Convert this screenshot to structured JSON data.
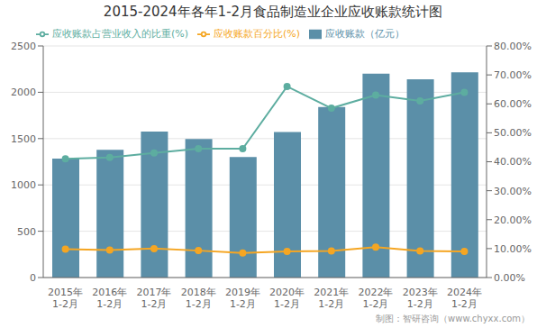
{
  "chart_data": {
    "type": "bar",
    "title": "2015-2024年各年1-2月食品制造业企业应收账款统计图",
    "categories": [
      "2015年\n1-2月",
      "2016年\n1-2月",
      "2017年\n1-2月",
      "2018年\n1-2月",
      "2019年\n1-2月",
      "2020年\n1-2月",
      "2021年\n1-2月",
      "2022年\n1-2月",
      "2023年\n1-2月",
      "2024年\n1-2月"
    ],
    "series": [
      {
        "name": "应收账款（亿元）",
        "type": "bar",
        "color": "#5b8fa8",
        "values": [
          1285,
          1380,
          1575,
          1495,
          1300,
          1570,
          1840,
          2200,
          2140,
          2215
        ]
      },
      {
        "name": "应收账款百分比(%)",
        "type": "line",
        "color": "#f5a623",
        "marker": "circle",
        "axis": "y2",
        "values": [
          9.8,
          9.5,
          10.0,
          9.3,
          8.5,
          9.0,
          9.2,
          10.5,
          9.2,
          9.0
        ]
      },
      {
        "name": "应收账款占营业收入的比重(%)",
        "type": "line",
        "color": "#5dada0",
        "marker": "circle",
        "axis": "y2",
        "values": [
          41.0,
          41.5,
          43.0,
          44.5,
          44.5,
          66.0,
          58.5,
          63.0,
          61.0,
          64.0
        ]
      }
    ],
    "ylim": [
      0,
      2500
    ],
    "yticks": [
      0,
      500,
      1000,
      1500,
      2000,
      2500
    ],
    "y2lim": [
      0,
      80
    ],
    "y2ticks": [
      {
        "value": 0,
        "label": "0.00%"
      },
      {
        "value": 10,
        "label": "10.00%"
      },
      {
        "value": 20,
        "label": "20.00%"
      },
      {
        "value": 30,
        "label": "30.00%"
      },
      {
        "value": 40,
        "label": "40.00%"
      },
      {
        "value": 50,
        "label": "50.00%"
      },
      {
        "value": 60,
        "label": "60.00%"
      },
      {
        "value": 70,
        "label": "70.00%"
      },
      {
        "value": 80,
        "label": "80.00%"
      }
    ],
    "grid": true,
    "legend": "upper left",
    "annotations": [
      "制图：智研咨询（www.chyxx.com）"
    ]
  }
}
